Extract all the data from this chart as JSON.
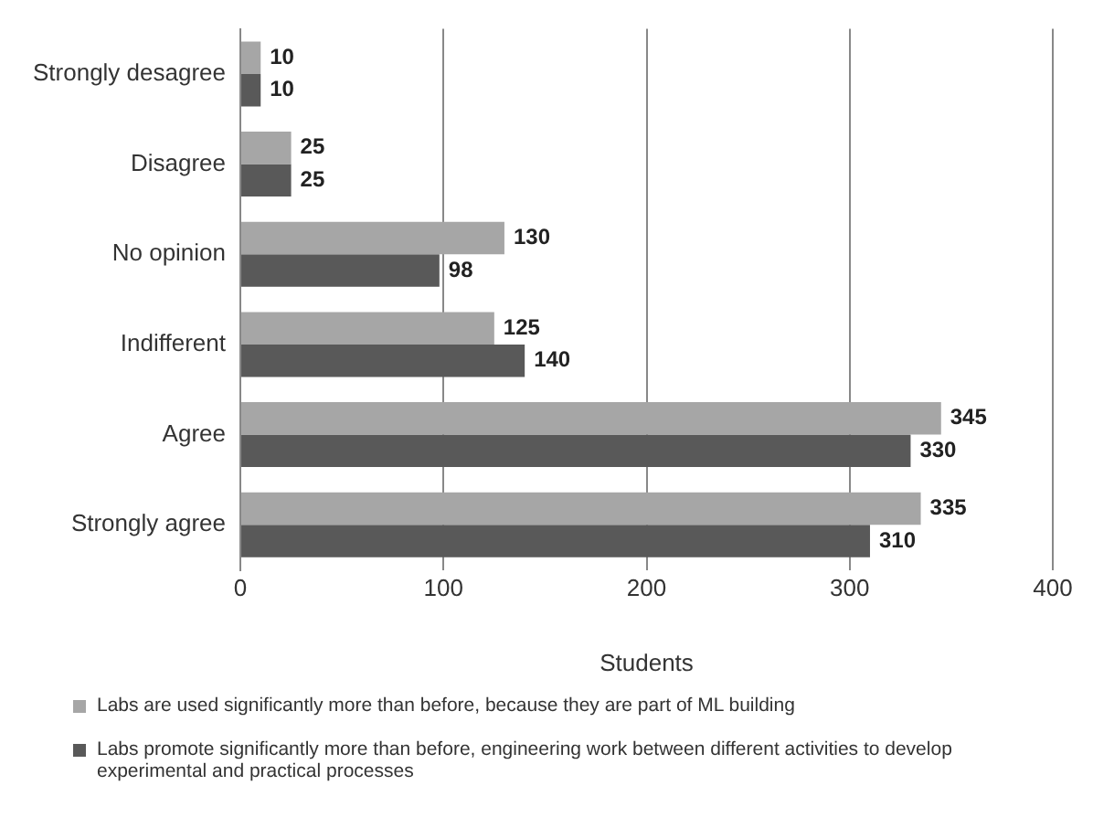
{
  "chart_data": {
    "type": "bar",
    "orientation": "horizontal",
    "xlabel": "Students",
    "categories": [
      "Strongly desagree",
      "Disagree",
      "No opinion",
      "Indifferent",
      "Agree",
      "Strongly agree"
    ],
    "series": [
      {
        "name": "Labs are used significantly more than before, because they are part of ML building",
        "color": "#a6a6a6",
        "values": [
          10,
          25,
          130,
          125,
          345,
          335
        ]
      },
      {
        "name": "Labs promote significantly more than before, engineering work between different activities to develop experimental and practical processes",
        "color": "#595959",
        "values": [
          10,
          25,
          98,
          140,
          330,
          310
        ]
      }
    ],
    "xlim": [
      0,
      400
    ],
    "xticks": [
      0,
      100,
      200,
      300,
      400
    ],
    "grid": "x",
    "legend": "bottom",
    "data_labels": true
  }
}
